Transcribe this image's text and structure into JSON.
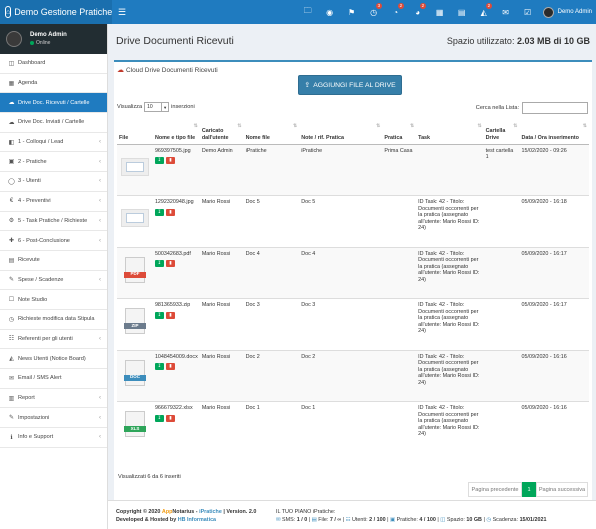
{
  "app": {
    "title": "Demo Gestione Pratiche"
  },
  "topbar": {
    "icons": [
      {
        "name": "folder-icon",
        "glyph": "🗀",
        "badge": ""
      },
      {
        "name": "eye-icon",
        "glyph": "◉",
        "badge": ""
      },
      {
        "name": "bell-icon",
        "glyph": "⚑",
        "badge": ""
      },
      {
        "name": "clock-icon",
        "glyph": "◷",
        "badge": "3"
      },
      {
        "name": "alarm-icon",
        "glyph": "◔",
        "badge": "2"
      },
      {
        "name": "timer-icon",
        "glyph": "◕",
        "badge": "2"
      },
      {
        "name": "calendar-icon",
        "glyph": "▦",
        "badge": ""
      },
      {
        "name": "calendar-check-icon",
        "glyph": "▤",
        "badge": ""
      },
      {
        "name": "megaphone-icon",
        "glyph": "◭",
        "badge": "2"
      },
      {
        "name": "envelope-icon",
        "glyph": "✉",
        "badge": ""
      },
      {
        "name": "check-square-icon",
        "glyph": "☑",
        "badge": ""
      }
    ],
    "user_name": "Demo Admin"
  },
  "sidebar": {
    "user": {
      "name": "Demo Admin",
      "status": "Online"
    },
    "items": [
      {
        "label": "Dashboard",
        "icon": "◫",
        "chev": false,
        "active": false
      },
      {
        "label": "Agenda",
        "icon": "▦",
        "chev": false,
        "active": false
      },
      {
        "label": "Drive Doc. Ricevuti / Cartelle",
        "icon": "☁",
        "chev": false,
        "active": true
      },
      {
        "label": "Drive Doc. Inviati / Cartelle",
        "icon": "☁",
        "chev": false,
        "active": false
      },
      {
        "label": "1 - Colloqui / Lead",
        "icon": "◧",
        "chev": true,
        "active": false
      },
      {
        "label": "2 - Pratiche",
        "icon": "▣",
        "chev": true,
        "active": false
      },
      {
        "label": "3 - Utenti",
        "icon": "◯",
        "chev": true,
        "active": false
      },
      {
        "label": "4 - Preventivi",
        "icon": "€",
        "chev": true,
        "active": false
      },
      {
        "label": "5 - Task Pratiche / Richieste",
        "icon": "⚙",
        "chev": true,
        "active": false
      },
      {
        "label": "6 - Post-Conclusione",
        "icon": "✚",
        "chev": true,
        "active": false
      },
      {
        "label": "Ricevute",
        "icon": "▤",
        "chev": false,
        "active": false
      },
      {
        "label": "Spese / Scadenze",
        "icon": "✎",
        "chev": true,
        "active": false
      },
      {
        "label": "Note Studio",
        "icon": "☐",
        "chev": false,
        "active": false
      },
      {
        "label": "Richieste modifica data Stipula",
        "icon": "◷",
        "chev": false,
        "active": false
      },
      {
        "label": "Referenti per gli utenti",
        "icon": "☷",
        "chev": true,
        "active": false
      },
      {
        "label": "News Utenti (Notice Board)",
        "icon": "◭",
        "chev": false,
        "active": false
      },
      {
        "label": "Email / SMS Alert",
        "icon": "✉",
        "chev": false,
        "active": false
      },
      {
        "label": "Report",
        "icon": "▥",
        "chev": true,
        "active": false
      },
      {
        "label": "Impostazioni",
        "icon": "✎",
        "chev": true,
        "active": false
      },
      {
        "label": "Info e Support",
        "icon": "ℹ",
        "chev": true,
        "active": false
      }
    ]
  },
  "header": {
    "title": "Drive Documenti Ricevuti",
    "space_label": "Spazio utilizzato:",
    "space_value": "2.03 MB di 10 GB"
  },
  "box": {
    "title": "Cloud Drive Documenti Ricevuti",
    "add_button": "AGGIUNGI FILE AL DRIVE",
    "show_prefix": "Visualizza",
    "show_value": "10",
    "show_suffix": "inserzioni",
    "search_label": "Cerca nella Lista:",
    "search_value": ""
  },
  "table": {
    "columns": [
      "File",
      "Nome e tipo file",
      "Caricato dall'utente",
      "Nome file",
      "Note / rif. Pratica",
      "Pratica",
      "Task",
      "Cartella Drive",
      "Data / Ora inserimento"
    ],
    "rows": [
      {
        "type": "img",
        "file": "969397505.jpg",
        "user": "Demo Admin",
        "name": "iPratiche",
        "note": "iPratiche",
        "pratica": "Prima Casa",
        "task": "",
        "folder": "test cartella 1",
        "date": "15/02/2020 - 09:26"
      },
      {
        "type": "img",
        "file": "1292320948.jpg",
        "user": "Mario Rossi",
        "name": "Doc 5",
        "note": "Doc 5",
        "pratica": "",
        "task": "ID Task: 42 - Titolo: Documenti occorrenti per la pratica (assegnato all'utente: Mario Rossi ID: 24)",
        "folder": "",
        "date": "05/09/2020 - 16:18"
      },
      {
        "type": "PDF",
        "file": "500342683.pdf",
        "user": "Mario Rossi",
        "name": "Doc 4",
        "note": "Doc 4",
        "pratica": "",
        "task": "ID Task: 42 - Titolo: Documenti occorrenti per la pratica (assegnato all'utente: Mario Rossi ID: 24)",
        "folder": "",
        "date": "05/09/2020 - 16:17"
      },
      {
        "type": "ZIP",
        "file": "981365933.zip",
        "user": "Mario Rossi",
        "name": "Doc 3",
        "note": "Doc 3",
        "pratica": "",
        "task": "ID Task: 42 - Titolo: Documenti occorrenti per la pratica (assegnato all'utente: Mario Rossi ID: 24)",
        "folder": "",
        "date": "05/09/2020 - 16:17"
      },
      {
        "type": "DOC",
        "file": "1048454009.docx",
        "user": "Mario Rossi",
        "name": "Doc 2",
        "note": "Doc 2",
        "pratica": "",
        "task": "ID Task: 42 - Titolo: Documenti occorrenti per la pratica (assegnato all'utente: Mario Rossi ID: 24)",
        "folder": "",
        "date": "05/09/2020 - 16:16"
      },
      {
        "type": "XLS",
        "file": "966679322.xlsx",
        "user": "Mario Rossi",
        "name": "Doc 1",
        "note": "Doc 1",
        "pratica": "",
        "task": "ID Task: 42 - Titolo: Documenti occorrenti per la pratica (assegnato all'utente: Mario Rossi ID: 24)",
        "folder": "",
        "date": "05/09/2020 - 16:16"
      }
    ],
    "label_colors": {
      "PDF": "#dd4b39",
      "ZIP": "#6b7b8c",
      "DOC": "#3c8dbc",
      "XLS": "#2ea55a"
    }
  },
  "pagination": {
    "info": "Visualizzati 6 da 6 inseriti",
    "prev": "Pagina precedente",
    "current": "1",
    "next": "Pagina successiva"
  },
  "footer": {
    "copyright": "Copyright © 2020",
    "brand_app": "App",
    "brand_notarius": "Notarius",
    "brand_sep": " - ",
    "brand_ipratiche": "iPratiche",
    "version": "| Version. 2.0",
    "developed": "Developed & Hosted by",
    "developer": "HB Informatica",
    "plan_title": "IL TUO PIANO iPratiche:",
    "plan_stats": [
      {
        "label": "SMS:",
        "value": "1 / 0"
      },
      {
        "label": "File:",
        "value": "7 / ∞"
      },
      {
        "label": "Utenti:",
        "value": "2 / 100"
      },
      {
        "label": "Pratiche:",
        "value": "4 / 100"
      },
      {
        "label": "Spazio:",
        "value": "10 GB"
      },
      {
        "label": "Scadenza:",
        "value": "15/01/2021"
      }
    ]
  }
}
